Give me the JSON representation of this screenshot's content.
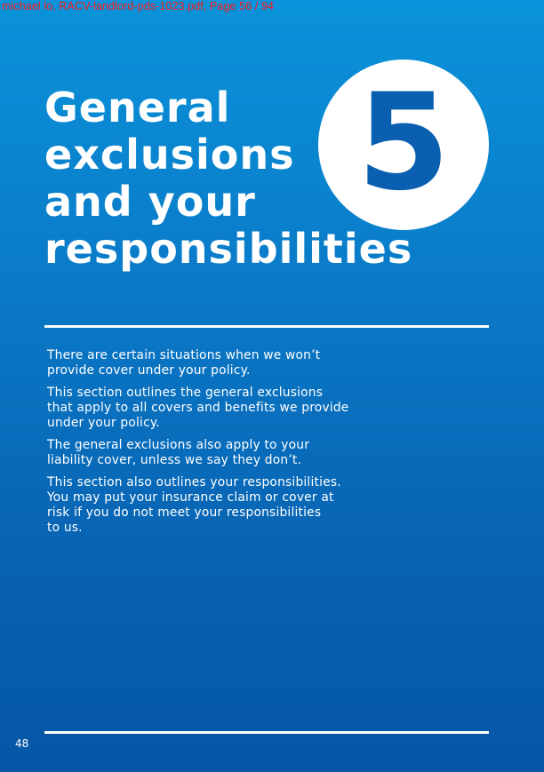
{
  "watermark": "michael lo, RACV-landlord-pds-1023.pdf, Page 56 / 94",
  "section": {
    "number": "5",
    "title_lines": [
      "General",
      "exclusions",
      "and your",
      "responsibilities"
    ]
  },
  "body": {
    "paragraphs": [
      [
        "There are certain situations when we won’t",
        "provide cover under your policy."
      ],
      [
        "This section outlines the general exclusions",
        "that apply to all covers and benefits we provide",
        "under your policy."
      ],
      [
        "The general exclusions also apply to your",
        "liability cover, unless we say they don’t."
      ],
      [
        "This section also outlines your responsibilities.",
        "You may put your insurance claim or cover at",
        "risk if you do not meet your responsibilities",
        "to us."
      ]
    ]
  },
  "footer": {
    "page_number": "48"
  }
}
